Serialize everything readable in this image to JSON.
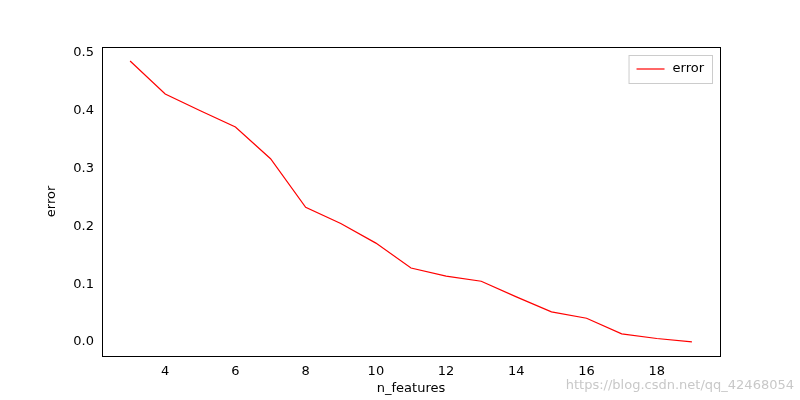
{
  "chart_data": {
    "type": "line",
    "x_label": "n_features",
    "y_label": "error",
    "annotations": [
      "https://blog.csdn.net/qq_42468054"
    ],
    "x": [
      3,
      4,
      5,
      6,
      7,
      8,
      9,
      10,
      11,
      12,
      13,
      14,
      15,
      16,
      17,
      18,
      19
    ],
    "series": [
      {
        "name": "error",
        "color": "#ff0000",
        "values": [
          0.486,
          0.429,
          0.4,
          0.372,
          0.317,
          0.233,
          0.205,
          0.171,
          0.128,
          0.114,
          0.105,
          0.078,
          0.052,
          0.041,
          0.014,
          0.006,
          0.0
        ]
      }
    ],
    "xlim": [
      2.2,
      19.8
    ],
    "xticks": [
      4,
      6,
      8,
      10,
      12,
      14,
      16,
      18
    ],
    "ylim": [
      -0.0243,
      0.5103
    ],
    "yticks": [
      {
        "value": 0,
        "label": "0.0"
      },
      0.1,
      0.2,
      0.3,
      0.4,
      0.5
    ],
    "grid": false,
    "legend": "upper right"
  }
}
